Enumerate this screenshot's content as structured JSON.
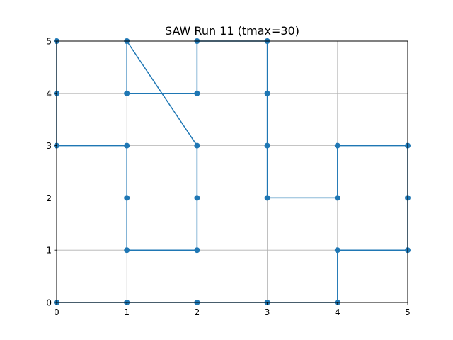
{
  "chart_data": {
    "type": "line",
    "title": "SAW Run 11 (tmax=30)",
    "xlabel": "",
    "ylabel": "",
    "xlim": [
      0,
      5
    ],
    "ylim": [
      0,
      5
    ],
    "grid": true,
    "x_ticks": [
      "0",
      "1",
      "2",
      "3",
      "4",
      "5"
    ],
    "y_ticks": [
      "0",
      "1",
      "2",
      "3",
      "4",
      "5"
    ],
    "color": "#1f77b4",
    "series": [
      {
        "x": [
          0,
          1,
          2,
          3,
          4,
          4,
          5,
          5,
          5,
          4,
          4,
          3,
          3,
          3,
          3,
          2,
          2,
          1,
          1,
          2,
          2,
          2,
          1,
          1,
          1,
          0,
          0,
          0
        ],
        "y": [
          0,
          0,
          0,
          0,
          0,
          1,
          1,
          2,
          3,
          3,
          2,
          2,
          3,
          4,
          5,
          5,
          4,
          4,
          5,
          3,
          2,
          1,
          1,
          2,
          3,
          3,
          4,
          5
        ]
      }
    ]
  }
}
